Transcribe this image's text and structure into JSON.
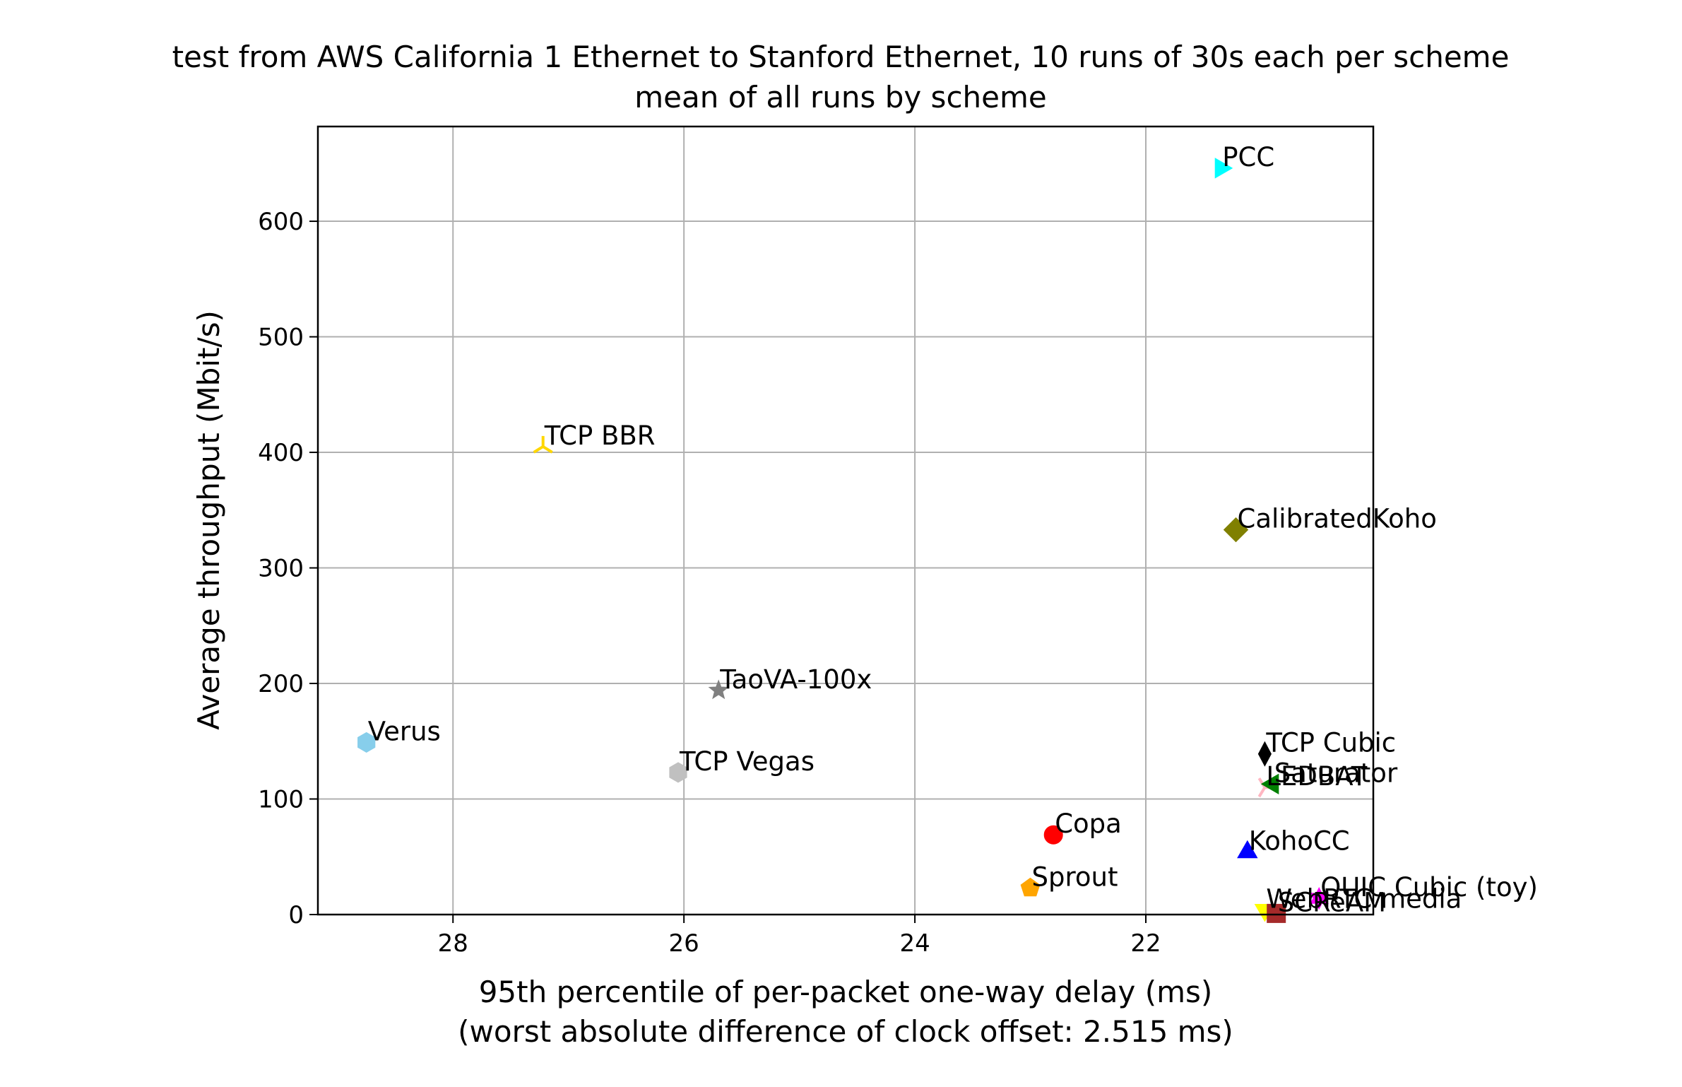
{
  "chart_data": {
    "type": "scatter",
    "title": "test from AWS California 1 Ethernet to Stanford Ethernet, 10 runs of 30s each per scheme",
    "subtitle": "mean of all runs by scheme",
    "xlabel": "95th percentile of per-packet one-way delay (ms)",
    "xlabel2": "(worst absolute difference of clock offset: 2.515 ms)",
    "ylabel": "Average throughput (Mbit/s)",
    "x_inverted": true,
    "xlim": [
      29.17,
      20.03
    ],
    "ylim": [
      0,
      682
    ],
    "xticks": [
      28,
      26,
      24,
      22
    ],
    "yticks": [
      0,
      100,
      200,
      300,
      400,
      500,
      600
    ],
    "grid": true,
    "series": [
      {
        "name": "PCC",
        "x": 21.35,
        "y": 646,
        "marker": "triangle-right",
        "color": "#00ffff"
      },
      {
        "name": "TCP BBR",
        "x": 27.22,
        "y": 405,
        "marker": "tri-down",
        "color": "#ffd700"
      },
      {
        "name": "CalibratedKoho",
        "x": 21.22,
        "y": 333,
        "marker": "diamond",
        "color": "#808000"
      },
      {
        "name": "TaoVA-100x",
        "x": 25.7,
        "y": 194,
        "marker": "star",
        "color": "#808080"
      },
      {
        "name": "Verus",
        "x": 28.75,
        "y": 149,
        "marker": "hexagon",
        "color": "#87ceeb"
      },
      {
        "name": "TCP Vegas",
        "x": 26.05,
        "y": 123,
        "marker": "hexagon",
        "color": "#c0c0c0"
      },
      {
        "name": "TCP Cubic",
        "x": 20.97,
        "y": 139,
        "marker": "thin-diamond",
        "color": "#000000"
      },
      {
        "name": "LEDBAT",
        "x": 20.97,
        "y": 110,
        "marker": "tri-left",
        "color": "#ffb6c1"
      },
      {
        "name": "Saturator",
        "x": 20.9,
        "y": 113,
        "marker": "triangle-left",
        "color": "#008000"
      },
      {
        "name": "Copa",
        "x": 22.8,
        "y": 69,
        "marker": "circle",
        "color": "#ff0000"
      },
      {
        "name": "KohoCC",
        "x": 21.12,
        "y": 54,
        "marker": "triangle-up",
        "color": "#0000ff"
      },
      {
        "name": "Sprout",
        "x": 23.0,
        "y": 23,
        "marker": "pentagon",
        "color": "#ffa500"
      },
      {
        "name": "QUIC Cubic (toy)",
        "x": 20.5,
        "y": 14,
        "marker": "star-hexagon",
        "color": "#ff00ff"
      },
      {
        "name": "WebRTC media",
        "x": 20.97,
        "y": 4,
        "marker": "triangle-down",
        "color": "#ffff00"
      },
      {
        "name": "SCReAM",
        "x": 20.87,
        "y": 1,
        "marker": "square",
        "color": "#a52a2a"
      }
    ]
  }
}
